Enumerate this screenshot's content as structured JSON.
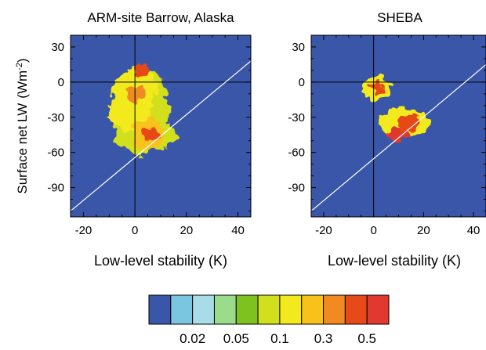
{
  "chart_data": [
    {
      "type": "heatmap",
      "title": "ARM-site Barrow, Alaska",
      "xlabel": "Low-level stability (K)",
      "ylabel": "Surface net LW",
      "ylabel_unit": "(Wm",
      "ylabel_exp": "-2",
      "ylabel_close": ")",
      "xlim": [
        -25,
        45
      ],
      "ylim": [
        -115,
        40
      ],
      "xticks": [
        -20,
        0,
        20,
        40
      ],
      "yticks": [
        30,
        0,
        -30,
        -60,
        -90
      ],
      "reference_lines": [
        {
          "orientation": "vertical",
          "x": 0
        },
        {
          "orientation": "horizontal",
          "y": 0
        }
      ],
      "diagonal_line": {
        "from": [
          -25,
          -110
        ],
        "to": [
          45,
          18
        ]
      },
      "background_color": "#3a56a8",
      "blobs": [
        {
          "cx": 2,
          "cy": -25,
          "rx": 11,
          "ry": 38,
          "level": 5
        },
        {
          "cx": 4,
          "cy": -45,
          "rx": 12,
          "ry": 14,
          "level": 5
        },
        {
          "cx": 0,
          "cy": -5,
          "rx": 9,
          "ry": 16,
          "level": 6
        },
        {
          "cx": -2,
          "cy": -25,
          "rx": 9,
          "ry": 16,
          "level": 6
        },
        {
          "cx": 5,
          "cy": -45,
          "rx": 6,
          "ry": 14,
          "level": 7
        },
        {
          "cx": 3,
          "cy": 10,
          "rx": 3,
          "ry": 6,
          "level": 9
        },
        {
          "cx": 0,
          "cy": -10,
          "rx": 4,
          "ry": 7,
          "level": 8
        },
        {
          "cx": 6,
          "cy": -45,
          "rx": 3,
          "ry": 6,
          "level": 9
        }
      ]
    },
    {
      "type": "heatmap",
      "title": "SHEBA",
      "xlabel": "Low-level stability (K)",
      "xlim": [
        -25,
        45
      ],
      "ylim": [
        -115,
        40
      ],
      "xticks": [
        -20,
        0,
        20,
        40
      ],
      "yticks": [
        30,
        0,
        -30,
        -60,
        -90
      ],
      "reference_lines": [
        {
          "orientation": "vertical",
          "x": 0
        },
        {
          "orientation": "horizontal",
          "y": 0
        }
      ],
      "diagonal_line": {
        "from": [
          -25,
          -110
        ],
        "to": [
          45,
          15
        ]
      },
      "background_color": "#3a56a8",
      "blobs": [
        {
          "cx": 1,
          "cy": -5,
          "rx": 6,
          "ry": 10,
          "level": 6
        },
        {
          "cx": 12,
          "cy": -35,
          "rx": 10,
          "ry": 12,
          "level": 6
        },
        {
          "cx": 1,
          "cy": -5,
          "rx": 3,
          "ry": 5,
          "level": 9
        },
        {
          "cx": 14,
          "cy": -35,
          "rx": 5,
          "ry": 7,
          "level": 9
        },
        {
          "cx": 9,
          "cy": -45,
          "rx": 5,
          "ry": 5,
          "level": 10
        }
      ]
    }
  ],
  "colorbar": {
    "colors": [
      "#3a56a8",
      "#7ac5e0",
      "#a8dde8",
      "#9bdb8c",
      "#7dc21f",
      "#d2df1d",
      "#f2ea1c",
      "#f9c21b",
      "#f08a21",
      "#e64a19",
      "#e1392f"
    ],
    "labels": [
      "0.02",
      "0.05",
      "0.1",
      "0.3",
      "0.5"
    ]
  }
}
